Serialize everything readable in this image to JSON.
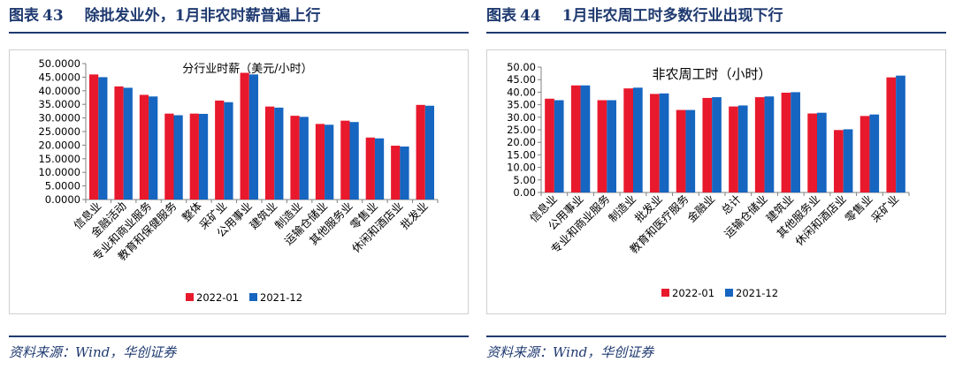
{
  "figures": [
    {
      "label": "图表",
      "number": "43",
      "title": "除批发业外，1月非农时薪普遍上行",
      "source": "资料来源：Wind，华创证券",
      "chart_data": {
        "type": "bar",
        "title": "分行业时薪（美元/小时）",
        "categories": [
          "信息业",
          "金融活动",
          "专业和商业服务",
          "教育和保健服务",
          "整体",
          "采矿业",
          "公用事业",
          "建筑业",
          "制造业",
          "运输仓储业",
          "其他服务业",
          "零售业",
          "休闲和酒店业",
          "批发业"
        ],
        "series": [
          {
            "name": "2022-01",
            "values": [
              46.0,
              41.6,
              38.5,
              31.6,
              31.6,
              36.4,
              46.6,
              34.2,
              30.8,
              27.8,
              29.0,
              22.8,
              19.8,
              34.8
            ],
            "color": "#e8192c"
          },
          {
            "name": "2021-12",
            "values": [
              45.0,
              41.1,
              37.9,
              31.0,
              31.5,
              35.8,
              46.0,
              33.8,
              30.4,
              27.5,
              28.5,
              22.5,
              19.5,
              34.5
            ],
            "color": "#1665c0"
          }
        ],
        "ylim": [
          0,
          50
        ],
        "yticks": [
          "0.0000",
          "5.0000",
          "10.0000",
          "15.0000",
          "20.0000",
          "25.0000",
          "30.0000",
          "35.0000",
          "40.0000",
          "45.0000",
          "50.0000"
        ],
        "xlabel": "",
        "ylabel": "",
        "legend": "bottom",
        "grid": false
      }
    },
    {
      "label": "图表",
      "number": "44",
      "title": "1月非农周工时多数行业出现下行",
      "source": "资料来源：Wind，华创证券",
      "chart_data": {
        "type": "bar",
        "title": "非农周工时（小时）",
        "categories": [
          "信息业",
          "公用事业",
          "专业和商业服务",
          "制造业",
          "批发业",
          "教育和医疗服务",
          "金融业",
          "总计",
          "运输仓储业",
          "建筑业",
          "其他服务业",
          "休闲和酒店业",
          "零售业",
          "采矿业"
        ],
        "series": [
          {
            "name": "2022-01",
            "values": [
              37.4,
              42.7,
              36.8,
              41.5,
              39.3,
              32.9,
              37.7,
              34.3,
              38.0,
              39.8,
              31.5,
              24.9,
              30.5,
              45.9
            ],
            "color": "#e8192c"
          },
          {
            "name": "2021-12",
            "values": [
              36.8,
              42.7,
              36.8,
              41.8,
              39.5,
              32.9,
              38.0,
              34.7,
              38.3,
              40.0,
              31.8,
              25.2,
              31.1,
              46.6
            ],
            "color": "#1665c0"
          }
        ],
        "ylim": [
          0,
          50
        ],
        "yticks": [
          "0.00",
          "5.00",
          "10.00",
          "15.00",
          "20.00",
          "25.00",
          "30.00",
          "35.00",
          "40.00",
          "45.00",
          "50.00"
        ],
        "xlabel": "",
        "ylabel": "",
        "legend": "bottom",
        "grid": false
      }
    }
  ]
}
